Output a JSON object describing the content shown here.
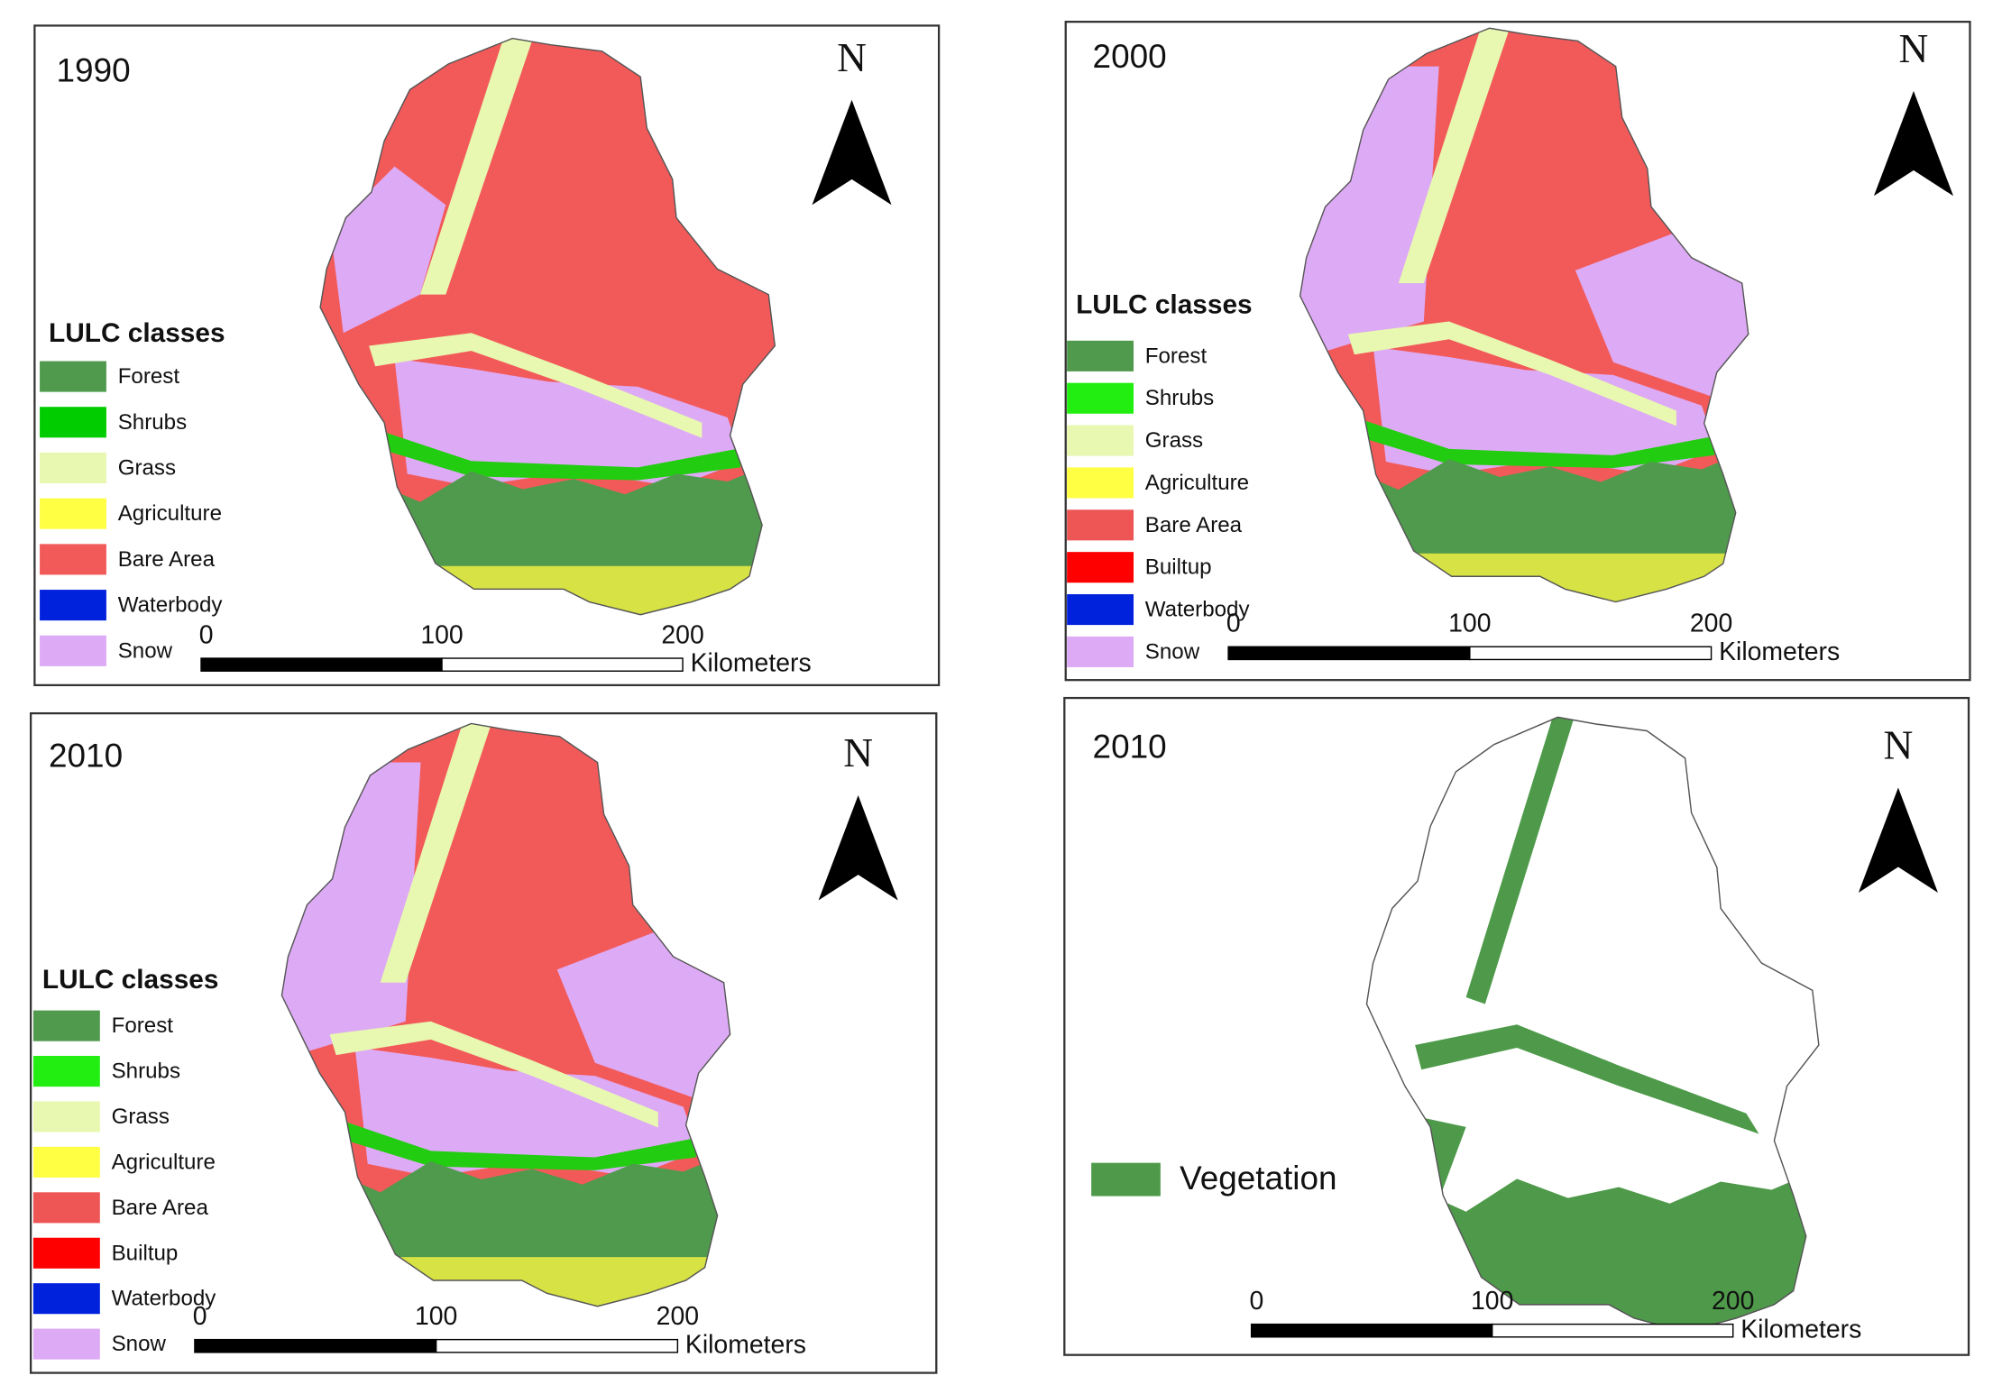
{
  "panels": [
    {
      "year": "1990",
      "legend_title": "LULC classes",
      "legend": [
        {
          "label": "Forest",
          "color": "#4f9a4c"
        },
        {
          "label": "Shrubs",
          "color": "#00cc00"
        },
        {
          "label": "Grass",
          "color": "#e8f8b0"
        },
        {
          "label": "Agriculture",
          "color": "#ffff44"
        },
        {
          "label": "Bare Area",
          "color": "#f25a5a"
        },
        {
          "label": "Waterbody",
          "color": "#0022dd"
        },
        {
          "label": "Snow",
          "color": "#ddaaf5"
        }
      ],
      "scale_labels": [
        "0",
        "100",
        "200"
      ],
      "scale_unit": "Kilometers",
      "north": "N"
    },
    {
      "year": "2000",
      "legend_title": "LULC classes",
      "legend": [
        {
          "label": "Forest",
          "color": "#4f9a4c"
        },
        {
          "label": "Shrubs",
          "color": "#22ee11"
        },
        {
          "label": "Grass",
          "color": "#e8f8b0"
        },
        {
          "label": "Agriculture",
          "color": "#ffff44"
        },
        {
          "label": "Bare Area",
          "color": "#ee5555"
        },
        {
          "label": "Builtup",
          "color": "#ff0000"
        },
        {
          "label": "Waterbody",
          "color": "#0022dd"
        },
        {
          "label": "Snow",
          "color": "#ddaaf5"
        }
      ],
      "scale_labels": [
        "0",
        "100",
        "200"
      ],
      "scale_unit": "Kilometers",
      "north": "N"
    },
    {
      "year": "2010",
      "legend_title": "LULC classes",
      "legend": [
        {
          "label": "Forest",
          "color": "#4f9a4c"
        },
        {
          "label": "Shrubs",
          "color": "#22ee11"
        },
        {
          "label": "Grass",
          "color": "#e8f8b0"
        },
        {
          "label": "Agriculture",
          "color": "#ffff44"
        },
        {
          "label": "Bare Area",
          "color": "#ee5555"
        },
        {
          "label": "Builtup",
          "color": "#ff0000"
        },
        {
          "label": "Waterbody",
          "color": "#0022dd"
        },
        {
          "label": "Snow",
          "color": "#ddaaf5"
        }
      ],
      "scale_labels": [
        "0",
        "100",
        "200"
      ],
      "scale_unit": "Kilometers",
      "north": "N"
    },
    {
      "year": "2010",
      "legend": [
        {
          "label": "Vegetation",
          "color": "#4e9a4a"
        }
      ],
      "scale_labels": [
        "0",
        "100",
        "200"
      ],
      "scale_unit": "Kilometers",
      "north": "N"
    }
  ]
}
